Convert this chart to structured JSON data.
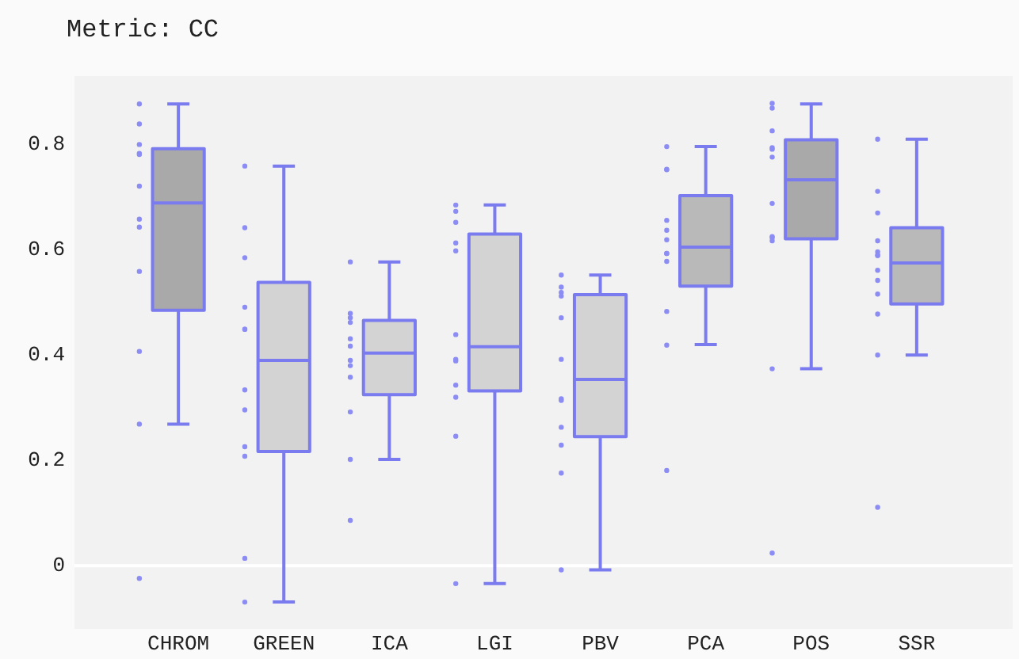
{
  "chart_data": {
    "type": "box",
    "title": "Metric: CC",
    "categories": [
      "CHROM",
      "GREEN",
      "ICA",
      "LGI",
      "PBV",
      "PCA",
      "POS",
      "SSR"
    ],
    "series": [
      {
        "type": "box",
        "color": "#7b7bf0",
        "colors": [
          "#a9a9a9",
          "#d3d3d3",
          "#d3d3d3",
          "#d3d3d3",
          "#d3d3d3",
          "#b9b9b9",
          "#a9a9a9",
          "#b9b9b9"
        ],
        "boxes": [
          {
            "low": 0.269,
            "q1": 0.485,
            "median": 0.689,
            "q3": 0.792,
            "high": 0.877
          },
          {
            "low": -0.069,
            "q1": 0.217,
            "median": 0.39,
            "q3": 0.538,
            "high": 0.759
          },
          {
            "low": 0.202,
            "q1": 0.325,
            "median": 0.404,
            "q3": 0.466,
            "high": 0.577
          },
          {
            "low": -0.034,
            "q1": 0.332,
            "median": 0.416,
            "q3": 0.63,
            "high": 0.685
          },
          {
            "low": -0.008,
            "q1": 0.245,
            "median": 0.354,
            "q3": 0.515,
            "high": 0.552
          },
          {
            "low": 0.42,
            "q1": 0.531,
            "median": 0.605,
            "q3": 0.703,
            "high": 0.796
          },
          {
            "low": 0.374,
            "q1": 0.621,
            "median": 0.733,
            "q3": 0.809,
            "high": 0.877
          },
          {
            "low": 0.4,
            "q1": 0.497,
            "median": 0.575,
            "q3": 0.642,
            "high": 0.81
          }
        ]
      },
      {
        "type": "scatter",
        "color": "#8c8cf5",
        "x": [
          "CHROM",
          "CHROM",
          "CHROM",
          "CHROM",
          "CHROM",
          "CHROM",
          "CHROM",
          "CHROM",
          "CHROM",
          "CHROM",
          "CHROM",
          "CHROM",
          "GREEN",
          "GREEN",
          "GREEN",
          "GREEN",
          "GREEN",
          "GREEN",
          "GREEN",
          "GREEN",
          "GREEN",
          "GREEN",
          "GREEN",
          "GREEN",
          "ICA",
          "ICA",
          "ICA",
          "ICA",
          "ICA",
          "ICA",
          "ICA",
          "ICA",
          "ICA",
          "ICA",
          "ICA",
          "ICA",
          "LGI",
          "LGI",
          "LGI",
          "LGI",
          "LGI",
          "LGI",
          "LGI",
          "LGI",
          "LGI",
          "LGI",
          "LGI",
          "LGI",
          "PBV",
          "PBV",
          "PBV",
          "PBV",
          "PBV",
          "PBV",
          "PBV",
          "PBV",
          "PBV",
          "PBV",
          "PBV",
          "PBV",
          "PCA",
          "PCA",
          "PCA",
          "PCA",
          "PCA",
          "PCA",
          "PCA",
          "PCA",
          "PCA",
          "PCA",
          "PCA",
          "PCA",
          "POS",
          "POS",
          "POS",
          "POS",
          "POS",
          "POS",
          "POS",
          "POS",
          "POS",
          "POS",
          "POS",
          "POS",
          "SSR",
          "SSR",
          "SSR",
          "SSR",
          "SSR",
          "SSR",
          "SSR",
          "SSR",
          "SSR",
          "SSR",
          "SSR",
          "SSR",
          "SSR"
        ],
        "values": [
          0.877,
          0.839,
          0.8,
          0.783,
          0.781,
          0.721,
          0.658,
          0.643,
          0.559,
          0.407,
          0.269,
          -0.024,
          0.759,
          0.642,
          0.585,
          0.491,
          0.449,
          0.449,
          0.334,
          0.296,
          0.226,
          0.208,
          0.014,
          -0.069,
          0.577,
          0.479,
          0.471,
          0.462,
          0.431,
          0.417,
          0.39,
          0.38,
          0.358,
          0.292,
          0.202,
          0.086,
          0.685,
          0.673,
          0.652,
          0.613,
          0.598,
          0.439,
          0.389,
          0.392,
          0.343,
          0.32,
          0.246,
          -0.034,
          0.552,
          0.529,
          0.519,
          0.512,
          0.471,
          0.392,
          0.317,
          0.314,
          0.263,
          0.229,
          0.176,
          -0.008,
          0.796,
          0.753,
          0.752,
          0.656,
          0.637,
          0.619,
          0.593,
          0.593,
          0.578,
          0.483,
          0.419,
          0.181,
          0.878,
          0.869,
          0.826,
          0.794,
          0.791,
          0.776,
          0.688,
          0.625,
          0.623,
          0.617,
          0.374,
          0.024,
          0.81,
          0.711,
          0.67,
          0.617,
          0.596,
          0.59,
          0.589,
          0.561,
          0.542,
          0.516,
          0.478,
          0.4,
          0.111
        ]
      }
    ],
    "ylim": [
      -0.12,
      0.93
    ],
    "yticks": [
      0,
      0.2,
      0.4,
      0.6,
      0.8
    ],
    "grid": false,
    "legend": false,
    "ref_lines": [
      {
        "axis": "y",
        "value": 0,
        "color": "#ffffff"
      }
    ]
  }
}
